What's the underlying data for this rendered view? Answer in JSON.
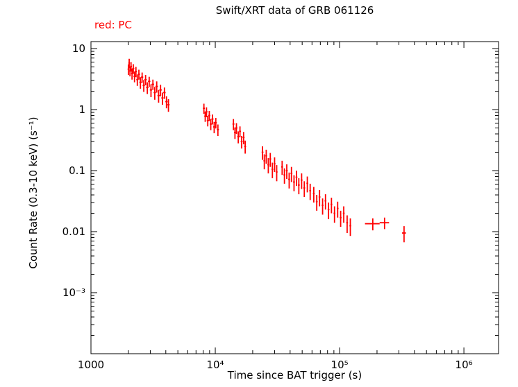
{
  "page": {
    "background": "#ffffff"
  },
  "header": {
    "title": "Swift/XRT data of GRB 061126"
  },
  "legend": {
    "label": "red: PC",
    "color": "#ff0000"
  },
  "chart_data": {
    "type": "scatter",
    "title": "Swift/XRT data of GRB 061126",
    "xlabel": "Time since BAT trigger (s)",
    "ylabel": "Count Rate (0.3-10 keV) (s⁻¹)",
    "xscale": "log",
    "yscale": "log",
    "xlim": [
      1000,
      1900000
    ],
    "ylim": [
      0.0001,
      13
    ],
    "grid": false,
    "legend_position": "top-left-outside",
    "xticks": [
      [
        1000,
        "1000"
      ],
      [
        10000,
        "10⁴"
      ],
      [
        100000,
        "10⁵"
      ],
      [
        1000000,
        "10⁶"
      ]
    ],
    "yticks": [
      [
        10,
        "10"
      ],
      [
        1,
        "1"
      ],
      [
        0.1,
        "0.1"
      ],
      [
        0.01,
        "0.01"
      ],
      [
        0.001,
        "10⁻³"
      ]
    ],
    "series": [
      {
        "name": "PC",
        "color": "#ff0000",
        "marker": "error-bar-cross",
        "points_format": [
          "time_s",
          "time_err_s",
          "rate_cps",
          "rate_err_cps"
        ],
        "points": [
          [
            2000,
            30,
            4.6,
            0.9
          ],
          [
            2030,
            30,
            5.8,
            1.0
          ],
          [
            2060,
            30,
            4.3,
            0.8
          ],
          [
            2100,
            35,
            5.1,
            0.9
          ],
          [
            2140,
            35,
            3.9,
            0.8
          ],
          [
            2190,
            40,
            4.7,
            0.85
          ],
          [
            2240,
            40,
            3.5,
            0.7
          ],
          [
            2300,
            45,
            4.2,
            0.8
          ],
          [
            2360,
            45,
            3.1,
            0.65
          ],
          [
            2430,
            50,
            3.8,
            0.7
          ],
          [
            2500,
            50,
            2.8,
            0.6
          ],
          [
            2580,
            55,
            3.4,
            0.65
          ],
          [
            2660,
            55,
            2.5,
            0.55
          ],
          [
            2750,
            60,
            3.1,
            0.6
          ],
          [
            2840,
            60,
            2.3,
            0.5
          ],
          [
            2940,
            65,
            2.9,
            0.55
          ],
          [
            3040,
            65,
            2.1,
            0.5
          ],
          [
            3150,
            70,
            2.6,
            0.5
          ],
          [
            3260,
            70,
            1.9,
            0.45
          ],
          [
            3380,
            75,
            2.4,
            0.5
          ],
          [
            3500,
            75,
            1.7,
            0.4
          ],
          [
            3630,
            80,
            2.1,
            0.45
          ],
          [
            3760,
            80,
            1.55,
            0.35
          ],
          [
            3900,
            85,
            1.9,
            0.4
          ],
          [
            4050,
            85,
            1.35,
            0.3
          ],
          [
            4200,
            90,
            1.2,
            0.28
          ],
          [
            8100,
            150,
            1.05,
            0.2
          ],
          [
            8300,
            150,
            0.78,
            0.15
          ],
          [
            8500,
            160,
            0.92,
            0.17
          ],
          [
            8700,
            160,
            0.66,
            0.13
          ],
          [
            8950,
            170,
            0.8,
            0.15
          ],
          [
            9200,
            170,
            0.58,
            0.12
          ],
          [
            9500,
            180,
            0.7,
            0.13
          ],
          [
            9800,
            180,
            0.52,
            0.11
          ],
          [
            10100,
            190,
            0.61,
            0.12
          ],
          [
            10500,
            200,
            0.47,
            0.1
          ],
          [
            14000,
            250,
            0.58,
            0.12
          ],
          [
            14400,
            250,
            0.42,
            0.09
          ],
          [
            14800,
            260,
            0.5,
            0.1
          ],
          [
            15300,
            270,
            0.36,
            0.08
          ],
          [
            15800,
            280,
            0.44,
            0.09
          ],
          [
            16300,
            290,
            0.3,
            0.07
          ],
          [
            16900,
            300,
            0.35,
            0.08
          ],
          [
            17400,
            300,
            0.25,
            0.06
          ],
          [
            24000,
            400,
            0.2,
            0.05
          ],
          [
            24800,
            400,
            0.145,
            0.04
          ],
          [
            25700,
            420,
            0.175,
            0.045
          ],
          [
            26700,
            440,
            0.125,
            0.035
          ],
          [
            27700,
            450,
            0.155,
            0.04
          ],
          [
            28800,
            470,
            0.105,
            0.03
          ],
          [
            30000,
            480,
            0.13,
            0.035
          ],
          [
            31200,
            500,
            0.095,
            0.028
          ],
          [
            34500,
            600,
            0.115,
            0.03
          ],
          [
            36000,
            620,
            0.085,
            0.024
          ],
          [
            37600,
            650,
            0.1,
            0.027
          ],
          [
            39300,
            680,
            0.072,
            0.021
          ],
          [
            41000,
            700,
            0.09,
            0.025
          ],
          [
            43000,
            730,
            0.065,
            0.019
          ],
          [
            45000,
            760,
            0.078,
            0.022
          ],
          [
            47000,
            800,
            0.058,
            0.017
          ],
          [
            49500,
            830,
            0.07,
            0.02
          ],
          [
            52000,
            870,
            0.052,
            0.015
          ],
          [
            55000,
            900,
            0.062,
            0.018
          ],
          [
            58000,
            950,
            0.047,
            0.014
          ],
          [
            62000,
            1000,
            0.042,
            0.012
          ],
          [
            65500,
            1100,
            0.031,
            0.009
          ],
          [
            69000,
            1150,
            0.037,
            0.011
          ],
          [
            73000,
            1200,
            0.027,
            0.008
          ],
          [
            77000,
            1300,
            0.032,
            0.009
          ],
          [
            81500,
            1350,
            0.023,
            0.007
          ],
          [
            86000,
            1400,
            0.028,
            0.008
          ],
          [
            91000,
            1500,
            0.02,
            0.006
          ],
          [
            96500,
            1600,
            0.024,
            0.007
          ],
          [
            102000,
            1700,
            0.017,
            0.005
          ],
          [
            108000,
            1800,
            0.02,
            0.006
          ],
          [
            115000,
            1900,
            0.014,
            0.0045
          ],
          [
            122000,
            2000,
            0.0125,
            0.004
          ],
          [
            185000,
            25000,
            0.0135,
            0.003
          ],
          [
            230000,
            20000,
            0.014,
            0.003
          ],
          [
            330000,
            12000,
            0.0095,
            0.0028
          ]
        ]
      }
    ]
  }
}
